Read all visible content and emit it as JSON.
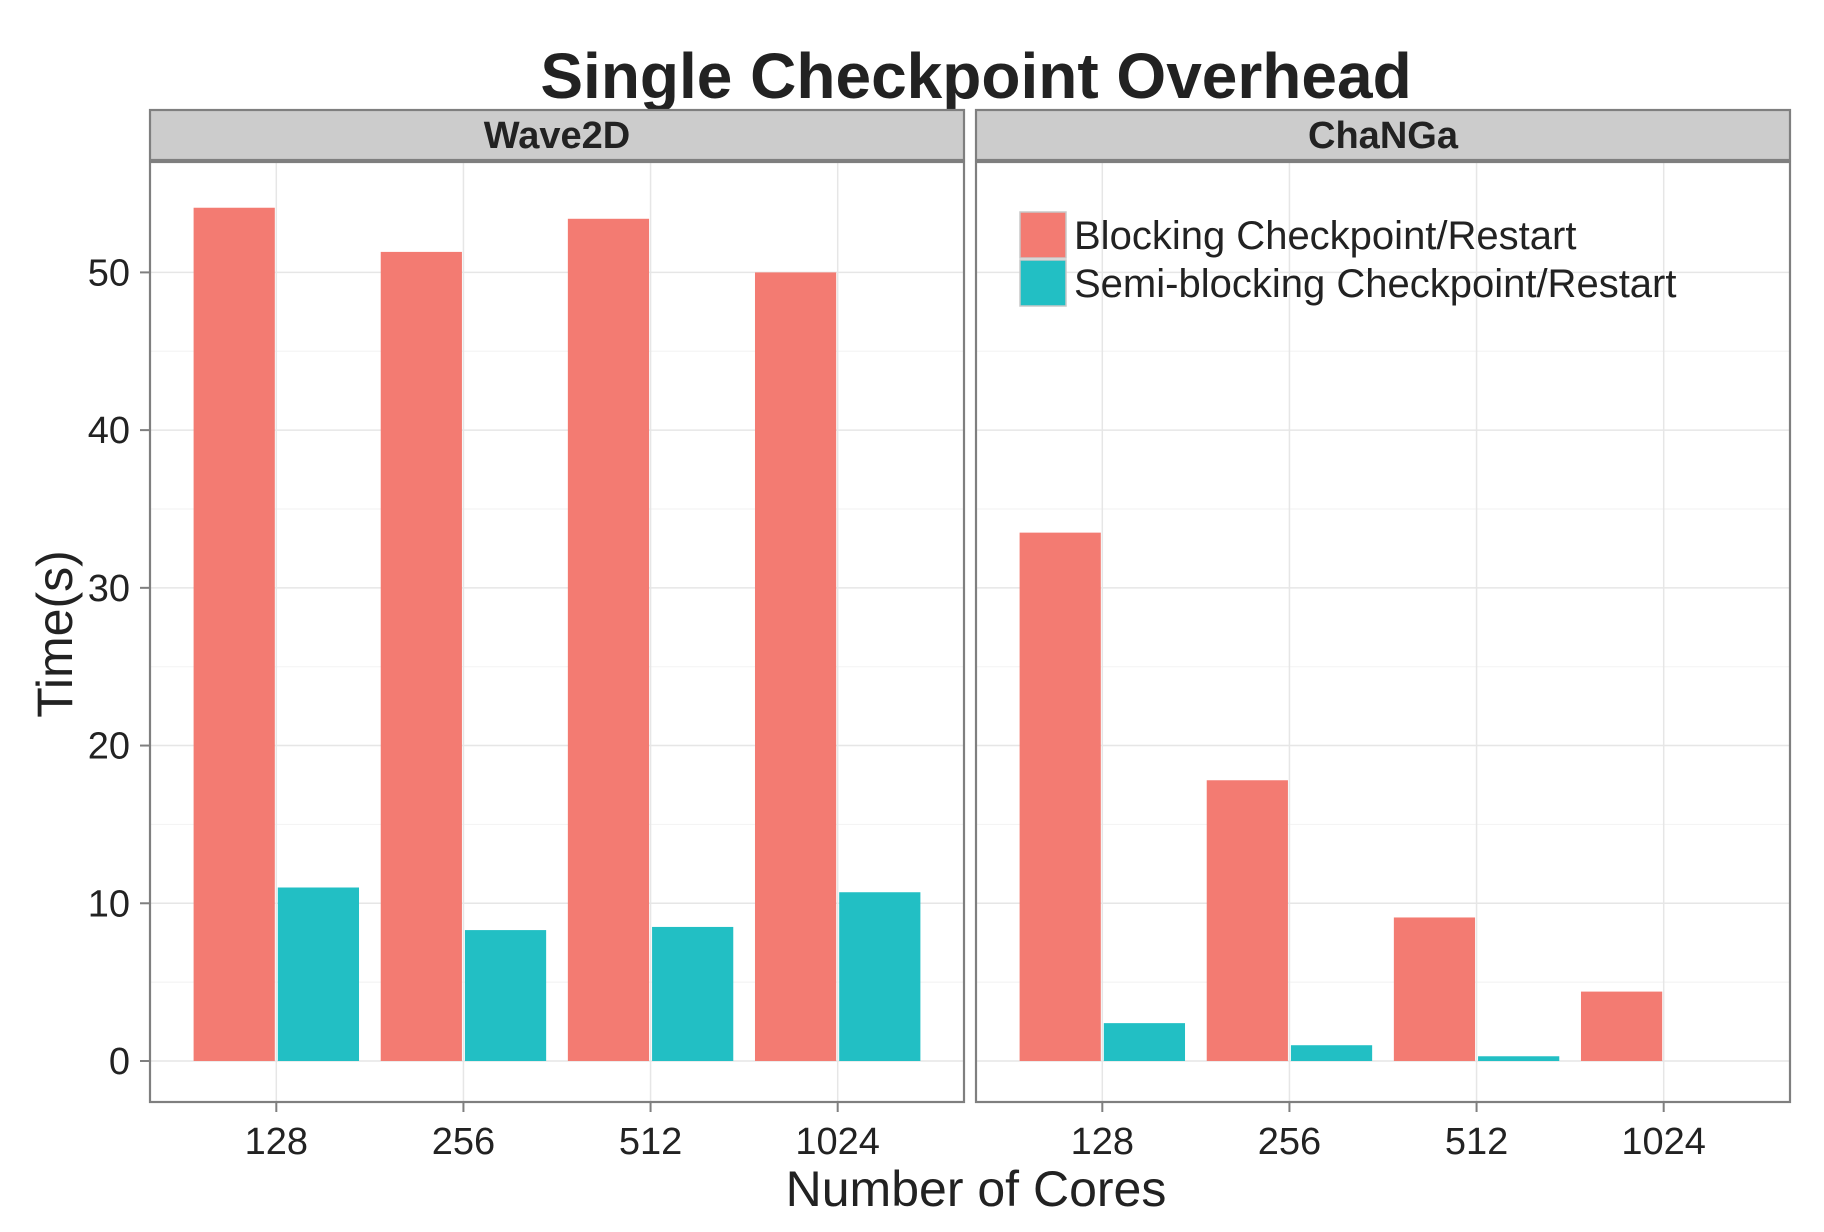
{
  "chart_data": {
    "type": "bar",
    "title": "Single Checkpoint Overhead",
    "xlabel": "Number of Cores",
    "ylabel": "Time(s)",
    "categories": [
      "128",
      "256",
      "512",
      "1024"
    ],
    "ylim": [
      -2.6,
      57
    ],
    "yticks": [
      0,
      10,
      20,
      30,
      40,
      50
    ],
    "grid": true,
    "legend": {
      "placement": "top-right of second panel",
      "entries": [
        {
          "name": "Blocking Checkpoint/Restart",
          "color": "#F37B72"
        },
        {
          "name": "Semi-blocking Checkpoint/Restart",
          "color": "#22BFC4"
        }
      ]
    },
    "panels": [
      {
        "name": "Wave2D",
        "series": [
          {
            "name": "Blocking Checkpoint/Restart",
            "values": [
              54.1,
              51.3,
              53.4,
              50.0
            ]
          },
          {
            "name": "Semi-blocking Checkpoint/Restart",
            "values": [
              11.0,
              8.3,
              8.5,
              10.7
            ]
          }
        ]
      },
      {
        "name": "ChaNGa",
        "series": [
          {
            "name": "Blocking Checkpoint/Restart",
            "values": [
              33.5,
              17.8,
              9.1,
              4.4
            ]
          },
          {
            "name": "Semi-blocking Checkpoint/Restart",
            "values": [
              2.4,
              1.0,
              0.3,
              0
            ]
          }
        ]
      }
    ]
  }
}
